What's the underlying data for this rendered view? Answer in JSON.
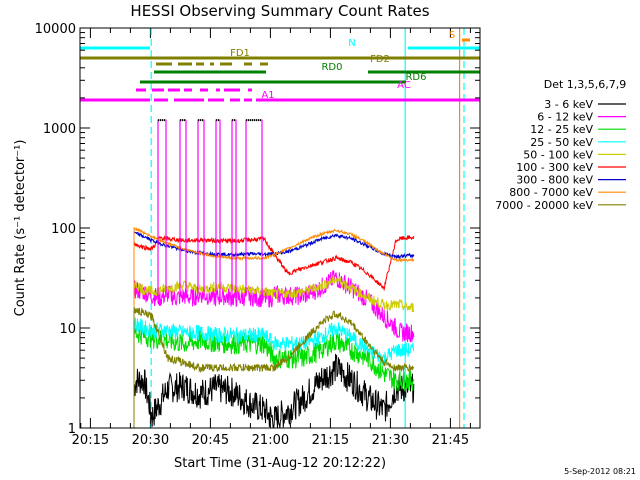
{
  "chart_data": {
    "type": "line",
    "title": "HESSI Observing Summary Count Rates",
    "xlabel": "Start Time (31-Aug-12 20:12:22)",
    "ylabel": "Count Rate (s⁻¹ detector⁻¹)",
    "ylog": true,
    "xlim": [
      0,
      100
    ],
    "ylim": [
      1,
      10000
    ],
    "x_unit": "minutes after 20:12:22",
    "x_ticks": [
      {
        "x": 2.6,
        "label": "20:15"
      },
      {
        "x": 17.6,
        "label": "20:30"
      },
      {
        "x": 32.6,
        "label": "20:45"
      },
      {
        "x": 47.6,
        "label": "21:00"
      },
      {
        "x": 62.6,
        "label": "21:15"
      },
      {
        "x": 77.6,
        "label": "21:30"
      },
      {
        "x": 92.6,
        "label": "21:45"
      }
    ],
    "y_ticks": [
      {
        "v": 1,
        "label": "1"
      },
      {
        "v": 10,
        "label": "10"
      },
      {
        "v": 100,
        "label": "100"
      },
      {
        "v": 1000,
        "label": "1000"
      },
      {
        "v": 10000,
        "label": "10000"
      }
    ],
    "legend_title": "Det 1,3,5,6,7,9",
    "legend_position": "right",
    "series": [
      {
        "name": "3 - 6 keV",
        "color": "#000000",
        "x": [
          13.5,
          14,
          16,
          18,
          22,
          26,
          30,
          34,
          38,
          42,
          46,
          48.5,
          52,
          56,
          60,
          64,
          68,
          72,
          76,
          79,
          80,
          82,
          83.5
        ],
        "y": [
          2.5,
          3,
          3,
          1.3,
          2.5,
          2.6,
          2.2,
          2.5,
          2.3,
          1.8,
          1.5,
          1.2,
          1.5,
          2,
          3,
          4,
          3,
          2,
          1.5,
          2.5,
          2.5,
          2.5,
          2.5
        ]
      },
      {
        "name": "6 - 12 keV",
        "color": "#ff00ff",
        "x": [
          13.5,
          14,
          16,
          18,
          20,
          22,
          24,
          26,
          28,
          30,
          32,
          34,
          36,
          38,
          40,
          42,
          44,
          46,
          48,
          48.5,
          50,
          56,
          60,
          64,
          68,
          72,
          76,
          78,
          79,
          80,
          82,
          83.5
        ],
        "y": [
          24,
          24,
          23,
          21,
          20,
          22,
          20,
          21,
          20,
          22,
          21,
          20,
          21,
          20,
          20,
          21,
          20,
          20,
          20,
          22,
          21,
          21,
          25,
          32,
          25,
          19,
          13,
          11,
          10,
          9,
          9,
          9
        ]
      },
      {
        "name": "12 - 25 keV",
        "color": "#00dd00",
        "x": [
          13.5,
          14,
          16,
          18,
          22,
          26,
          30,
          34,
          38,
          42,
          46,
          48.5,
          52,
          56,
          60,
          64,
          68,
          72,
          76,
          79,
          80,
          82,
          83.5
        ],
        "y": [
          9,
          9,
          8.5,
          8,
          7.5,
          7,
          7.5,
          7.2,
          7,
          7,
          7,
          5,
          5,
          5,
          6,
          7.5,
          6,
          5,
          3.5,
          3,
          3,
          3,
          3
        ]
      },
      {
        "name": "25 - 50 keV",
        "color": "#00ffff",
        "x": [
          13.5,
          14,
          16,
          18,
          22,
          26,
          30,
          34,
          38,
          42,
          46,
          48.5,
          52,
          56,
          60,
          64,
          68,
          72,
          76,
          79,
          80,
          82,
          83.5
        ],
        "y": [
          11,
          11,
          10,
          9.5,
          9.5,
          9,
          9,
          8.5,
          8.5,
          8.5,
          8.5,
          7,
          7,
          7,
          8,
          10,
          8,
          6,
          5,
          6,
          6,
          6,
          6
        ]
      },
      {
        "name": "50 - 100 keV",
        "color": "#cccc00",
        "x": [
          13.5,
          14,
          16,
          18,
          22,
          26,
          30,
          34,
          38,
          42,
          46,
          48.5,
          52,
          56,
          60,
          64,
          68,
          72,
          76,
          79,
          80,
          82,
          83.5
        ],
        "y": [
          28,
          27,
          24,
          23,
          25,
          27,
          24,
          26,
          25,
          24,
          23,
          22,
          22,
          23,
          26,
          31,
          25,
          20,
          17,
          17,
          17,
          16,
          16
        ]
      },
      {
        "name": "100 - 300 keV",
        "color": "#ff0000",
        "x": [
          13.5,
          14,
          16,
          18,
          20,
          22,
          26,
          30,
          34,
          38,
          42,
          46,
          48.5,
          52,
          56,
          60,
          64,
          68,
          72,
          76,
          79,
          80,
          82,
          83.5
        ],
        "y": [
          70,
          68,
          64,
          62,
          80,
          78,
          75,
          76,
          75,
          74,
          76,
          78,
          55,
          35,
          40,
          45,
          50,
          45,
          35,
          25,
          75,
          78,
          80,
          80
        ]
      },
      {
        "name": "300 - 800 keV",
        "color": "#0000cc",
        "x": [
          13.5,
          14,
          16,
          18,
          22,
          26,
          30,
          34,
          38,
          42,
          46,
          48.5,
          52,
          56,
          60,
          64,
          68,
          72,
          76,
          79,
          80,
          82,
          83.5
        ],
        "y": [
          90,
          88,
          82,
          75,
          66,
          60,
          56,
          55,
          54,
          55,
          55,
          55,
          58,
          66,
          77,
          85,
          78,
          66,
          55,
          52,
          52,
          53,
          53
        ]
      },
      {
        "name": "800 - 7000 keV",
        "color": "#ff8800",
        "x": [
          13.5,
          14,
          16,
          18,
          22,
          26,
          30,
          34,
          38,
          42,
          46,
          48.5,
          52,
          56,
          60,
          64,
          68,
          72,
          76,
          79,
          80,
          82,
          83.5
        ],
        "y": [
          100,
          98,
          90,
          82,
          70,
          62,
          56,
          52,
          50,
          50,
          50,
          54,
          62,
          74,
          86,
          95,
          86,
          70,
          55,
          48,
          48,
          48,
          48
        ]
      },
      {
        "name": "7000 - 20000 keV",
        "color": "#808000",
        "x": [
          13.5,
          14,
          16,
          18,
          22,
          26,
          30,
          34,
          38,
          42,
          46,
          48.5,
          52,
          56,
          60,
          64,
          68,
          72,
          76,
          79,
          80,
          82,
          83.5
        ],
        "y": [
          15,
          15,
          14,
          13,
          5,
          4.5,
          4,
          4,
          4,
          4,
          4,
          4,
          5,
          7.5,
          11,
          14,
          11,
          7,
          4.5,
          4,
          4,
          4,
          4
        ]
      }
    ],
    "spikes": {
      "color": "#ff00ff",
      "segments": [
        [
          19.5,
          21.5
        ],
        [
          25,
          26.5
        ],
        [
          29.5,
          31
        ],
        [
          34,
          35
        ],
        [
          38,
          39
        ],
        [
          41.5,
          45.5
        ]
      ],
      "peak": 1200
    },
    "flag_lines": [
      {
        "label": "N",
        "color": "#00ffff",
        "segments": [
          [
            0,
            17.5
          ],
          [
            82,
            100
          ]
        ]
      },
      {
        "label": "FD1",
        "color": "#808000",
        "segments": [
          [
            0,
            100
          ]
        ]
      },
      {
        "label": "FD2",
        "color": "#808000",
        "segments": [
          [
            19,
            23
          ],
          [
            24.5,
            28
          ],
          [
            29,
            31
          ],
          [
            32.5,
            33.5
          ],
          [
            35,
            38
          ],
          [
            41,
            43
          ],
          [
            45,
            47
          ]
        ]
      },
      {
        "label": "RD0",
        "color": "#008000",
        "segments": [
          [
            18.5,
            46.5
          ],
          [
            72,
            100
          ]
        ]
      },
      {
        "label": "RD6",
        "color": "#008000",
        "segments": [
          [
            15,
            81.5
          ]
        ]
      },
      {
        "label": "AC",
        "color": "#ff00ff",
        "segments": [
          [
            14,
            16.5
          ],
          [
            18,
            21
          ],
          [
            22,
            25
          ],
          [
            26,
            28
          ],
          [
            30,
            32
          ],
          [
            34,
            35
          ],
          [
            36,
            40
          ],
          [
            42,
            43
          ]
        ]
      },
      {
        "label": "A1",
        "color": "#ff00ff",
        "segments": [
          [
            0,
            17.5
          ],
          [
            18.5,
            22
          ],
          [
            23.5,
            31
          ],
          [
            32,
            36
          ],
          [
            37.5,
            40
          ],
          [
            41,
            43
          ],
          [
            44,
            100
          ]
        ]
      },
      {
        "label": "S",
        "color": "#ff8800",
        "segments": [
          [
            95.5,
            97.5
          ]
        ]
      }
    ],
    "vertical_markers": [
      {
        "x": 17.8,
        "color": "#00ffff",
        "style": "dashed"
      },
      {
        "x": 81.3,
        "color": "#00ffff",
        "style": "solid"
      },
      {
        "x": 94.9,
        "color": "#ff8800",
        "style": "solid"
      },
      {
        "x": 96.0,
        "color": "#00ffff",
        "style": "dashed"
      }
    ],
    "timestamp": "5-Sep-2012 08:21"
  }
}
